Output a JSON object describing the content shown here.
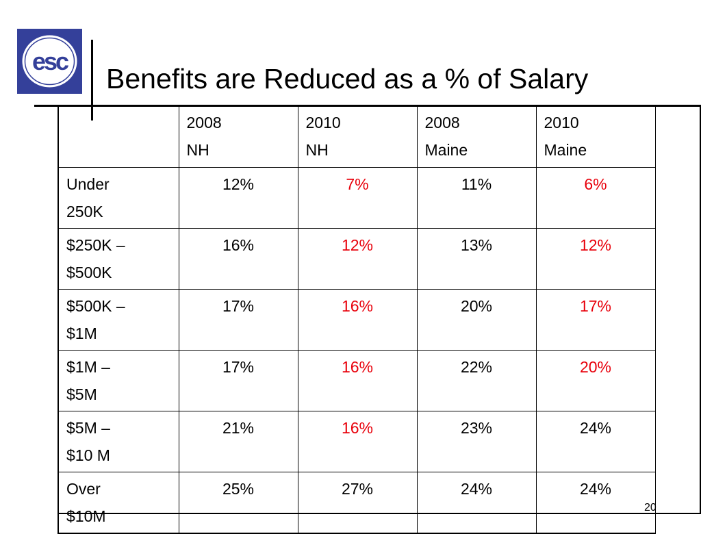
{
  "logo": {
    "text": "esc",
    "colors": {
      "background": "#34409a",
      "circle": "#ffffff",
      "text": "#34409a"
    }
  },
  "title": "Benefits are Reduced as a % of Salary",
  "table": {
    "columns": [
      {
        "line1": "2008",
        "line2": "NH"
      },
      {
        "line1": "2010",
        "line2": "NH"
      },
      {
        "line1": "2008",
        "line2": "Maine"
      },
      {
        "line1": "2010",
        "line2": "Maine"
      }
    ],
    "rows": [
      {
        "label1": "Under",
        "label2": "250K",
        "values": [
          "12%",
          "7%",
          "11%",
          "6%"
        ]
      },
      {
        "label1": "$250K –",
        "label2": "$500K",
        "values": [
          "16%",
          "12%",
          "13%",
          "12%"
        ]
      },
      {
        "label1": "$500K –",
        "label2": "$1M",
        "values": [
          "17%",
          "16%",
          "20%",
          "17%"
        ]
      },
      {
        "label1": "$1M –",
        "label2": "$5M",
        "values": [
          "17%",
          "16%",
          "22%",
          "20%"
        ]
      },
      {
        "label1": "$5M –",
        "label2": "$10 M",
        "values": [
          "21%",
          "16%",
          "23%",
          "24%"
        ]
      },
      {
        "label1": "Over",
        "label2": "$10M",
        "values": [
          "25%",
          "27%",
          "24%",
          "24%"
        ]
      }
    ],
    "highlight_color": "#e8000b"
  },
  "page_number": "20"
}
